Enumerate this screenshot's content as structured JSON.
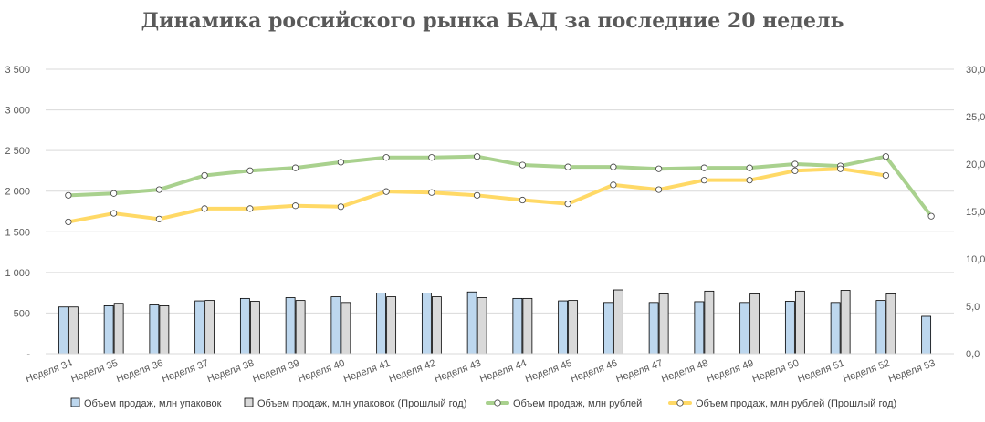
{
  "chart_data": {
    "type": "bar",
    "title": "Динамика российского рынка БАД за последние 20 недель",
    "categories": [
      "Неделя 34",
      "Неделя 35",
      "Неделя 36",
      "Неделя 37",
      "Неделя 38",
      "Неделя 39",
      "Неделя 40",
      "Неделя 41",
      "Неделя 42",
      "Неделя 43",
      "Неделя 44",
      "Неделя 45",
      "Неделя 46",
      "Неделя 47",
      "Неделя 48",
      "Неделя 49",
      "Неделя 50",
      "Неделя 51",
      "Неделя 52",
      "Неделя 53"
    ],
    "left_axis": {
      "ylim": [
        0,
        3500
      ],
      "ticks": [
        "-",
        "500",
        "1 000",
        "1 500",
        "2 000",
        "2 500",
        "3 000",
        "3 500"
      ],
      "tick_values": [
        0,
        500,
        1000,
        1500,
        2000,
        2500,
        3000,
        3500
      ]
    },
    "right_axis": {
      "ylim": [
        0,
        30
      ],
      "ticks": [
        "0,0",
        "5,0",
        "10,0",
        "15,0",
        "20,0",
        "25,0",
        "30,0"
      ],
      "tick_values": [
        0,
        5,
        10,
        15,
        20,
        25,
        30
      ]
    },
    "grid": true,
    "legend_position": "bottom",
    "series": [
      {
        "name": "Объем продаж, млн упаковок",
        "type": "bar",
        "axis": "left",
        "color": "#BDD7EE",
        "values": [
          575,
          590,
          600,
          650,
          680,
          690,
          700,
          745,
          745,
          760,
          680,
          650,
          630,
          630,
          640,
          630,
          645,
          630,
          655,
          460
        ]
      },
      {
        "name": "Объем продаж, млн упаковок (Прошлый год)",
        "type": "bar",
        "axis": "left",
        "color": "#D9D9D9",
        "values": [
          575,
          620,
          590,
          655,
          645,
          655,
          630,
          700,
          700,
          690,
          680,
          655,
          785,
          735,
          770,
          735,
          770,
          780,
          735,
          null
        ]
      },
      {
        "name": "Объем продаж, млн рублей",
        "type": "line",
        "axis": "right",
        "color": "#A9D18E",
        "values": [
          16.7,
          16.9,
          17.3,
          18.8,
          19.3,
          19.6,
          20.2,
          20.7,
          20.7,
          20.8,
          19.9,
          19.7,
          19.7,
          19.5,
          19.6,
          19.6,
          20.0,
          19.8,
          20.8,
          14.5
        ]
      },
      {
        "name": "Объем продаж, млн рублей (Прошлый год)",
        "type": "line",
        "axis": "right",
        "color": "#FFD966",
        "values": [
          13.9,
          14.8,
          14.2,
          15.3,
          15.3,
          15.6,
          15.5,
          17.1,
          17.0,
          16.7,
          16.2,
          15.8,
          17.8,
          17.3,
          18.3,
          18.3,
          19.3,
          19.5,
          18.8,
          null
        ]
      }
    ]
  }
}
